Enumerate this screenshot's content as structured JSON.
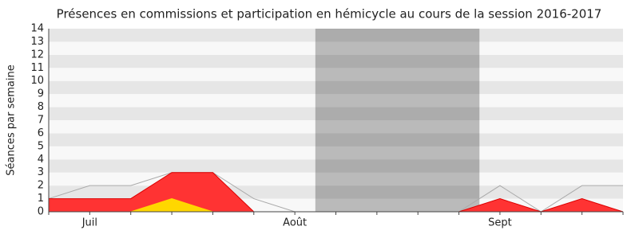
{
  "chart_data": {
    "type": "area",
    "title": "Présences en commissions et participation en hémicycle au cours de la session 2016-2017",
    "y_label": "Séances par semaine",
    "categories": [
      null,
      "Juil",
      null,
      null,
      null,
      null,
      "Août",
      null,
      null,
      null,
      null,
      "Sept",
      null,
      null,
      null
    ],
    "shaded_span": [
      6.5,
      10.5
    ],
    "series": [
      {
        "color": "#aaaaaa",
        "style": "line",
        "values": [
          1,
          2,
          2,
          3,
          3,
          1,
          0,
          0,
          0,
          0,
          0,
          2,
          0,
          2,
          2
        ]
      },
      {
        "color": "#ff3333",
        "style": "area",
        "values": [
          1,
          1,
          1,
          3,
          3,
          0,
          0,
          0,
          0,
          0,
          0,
          1,
          0,
          1,
          0
        ]
      },
      {
        "color": "#ffd700",
        "style": "area",
        "values": [
          0,
          0,
          0,
          1,
          0,
          0,
          0,
          0,
          0,
          0,
          0,
          0,
          0,
          0,
          0
        ]
      }
    ],
    "ylim": [
      0,
      14
    ],
    "yticks": [
      0,
      1,
      2,
      3,
      4,
      5,
      6,
      7,
      8,
      9,
      10,
      11,
      12,
      13,
      14
    ],
    "grid": true
  }
}
